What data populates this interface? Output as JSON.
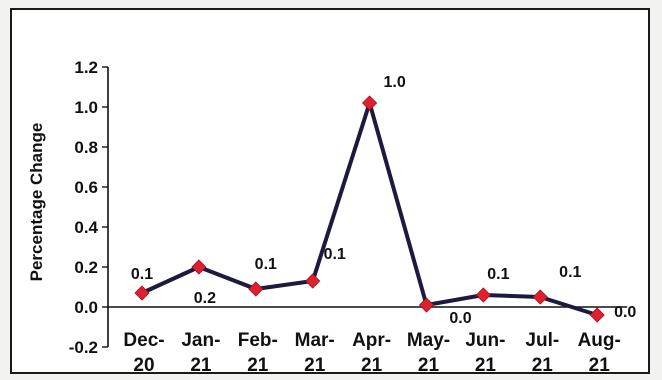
{
  "chart_data": {
    "type": "line",
    "title": "",
    "xlabel": "",
    "ylabel": "Percentage Change",
    "ylim": [
      -0.2,
      1.2
    ],
    "yticks": [
      "-0.2",
      "0.0",
      "0.2",
      "0.4",
      "0.6",
      "0.8",
      "1.0",
      "1.2"
    ],
    "categories": [
      [
        "Dec-",
        "20"
      ],
      [
        "Jan-",
        "21"
      ],
      [
        "Feb-",
        "21"
      ],
      [
        "Mar-",
        "21"
      ],
      [
        "Apr-",
        "21"
      ],
      [
        "May-",
        "21"
      ],
      [
        "Jun-",
        "21"
      ],
      [
        "Jul-",
        "21"
      ],
      [
        "Aug-",
        "21"
      ]
    ],
    "series": [
      {
        "values": [
          0.07,
          0.2,
          0.09,
          0.13,
          1.02,
          0.01,
          0.06,
          0.05,
          -0.04
        ],
        "data_labels": [
          "0.1",
          "0.2",
          "0.1",
          "0.1",
          "1.0",
          "0.0",
          "0.1",
          "0.1",
          "0.0"
        ],
        "line_color": "#1c1a3e",
        "marker_color": "#e0202e"
      }
    ],
    "grid": false,
    "legend": "none"
  }
}
